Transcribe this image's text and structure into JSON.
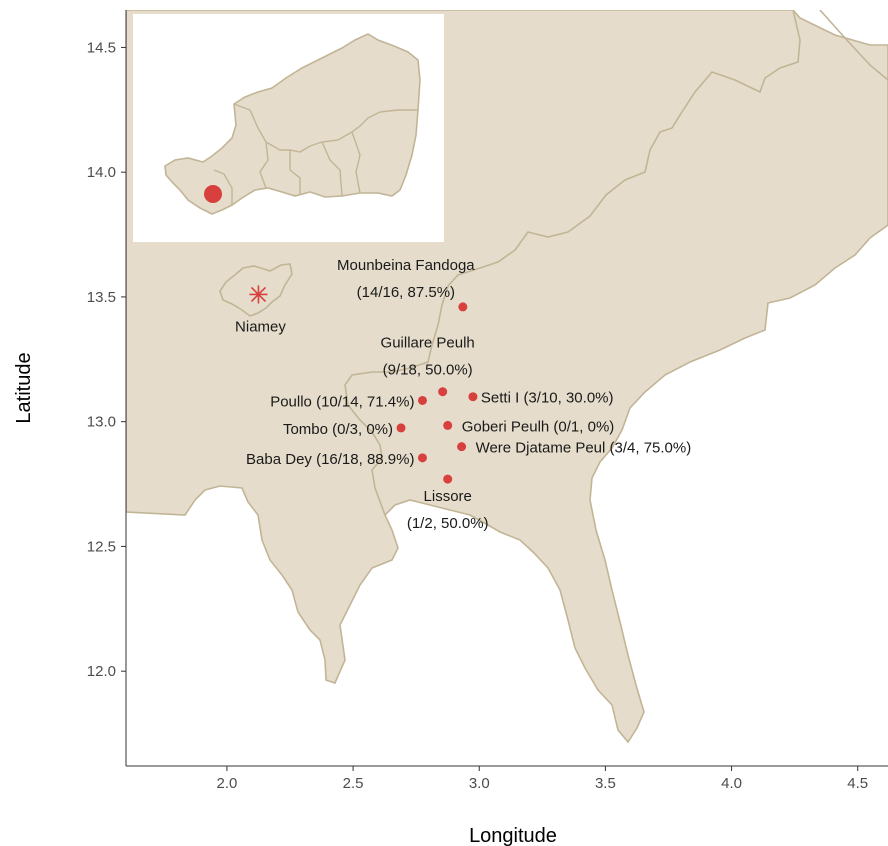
{
  "map": {
    "x_axis": {
      "title": "Longitude",
      "range": [
        1.6,
        4.62
      ],
      "ticks": [
        2.0,
        2.5,
        3.0,
        3.5,
        4.0,
        4.5
      ],
      "tick_labels": [
        "2.0",
        "2.5",
        "3.0",
        "3.5",
        "4.0",
        "4.5"
      ]
    },
    "y_axis": {
      "title": "Latitude",
      "range": [
        11.62,
        14.65
      ],
      "ticks": [
        12.0,
        12.5,
        13.0,
        13.5,
        14.0,
        14.5
      ],
      "tick_labels": [
        "12.0",
        "12.5",
        "13.0",
        "13.5",
        "14.0",
        "14.5"
      ]
    },
    "colors": {
      "land": "#e5dccb",
      "border": "#c2b596",
      "point": "#d8403e",
      "panel": "#ffffff",
      "frame": "#333333"
    },
    "city": {
      "name": "Niamey",
      "lon": 2.125,
      "lat": 13.51,
      "marker": "asterisk-icon"
    },
    "sites": [
      {
        "name": "Mounbeina Fandoga",
        "stats": "(14/16, 87.5%)",
        "lon": 2.935,
        "lat": 13.46
      },
      {
        "name": "Guillare Peulh",
        "stats": "(9/18, 50.0%)",
        "lon": 2.855,
        "lat": 13.12
      },
      {
        "name": "Poullo",
        "stats": "(10/14, 71.4%)",
        "lon": 2.775,
        "lat": 13.085
      },
      {
        "name": "Setti I",
        "stats": "(3/10, 30.0%)",
        "lon": 2.975,
        "lat": 13.1
      },
      {
        "name": "Tombo",
        "stats": "(0/3, 0%)",
        "lon": 2.69,
        "lat": 12.975
      },
      {
        "name": "Goberi Peulh",
        "stats": "(0/1, 0%)",
        "lon": 2.875,
        "lat": 12.985
      },
      {
        "name": "Were Djatame Peul",
        "stats": "(3/4, 75.0%)",
        "lon": 2.93,
        "lat": 12.9
      },
      {
        "name": "Baba Dey",
        "stats": "(16/18, 88.9%)",
        "lon": 2.775,
        "lat": 12.855
      },
      {
        "name": "Lissore",
        "stats": "(1/2, 50.0%)",
        "lon": 2.875,
        "lat": 12.77
      }
    ],
    "inset": {
      "description_icon": "niger-inset-map",
      "highlight": "study-area-dot"
    }
  }
}
